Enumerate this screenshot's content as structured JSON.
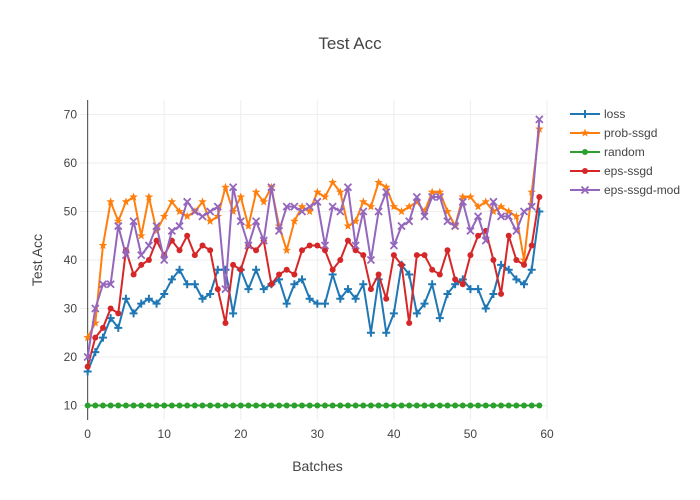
{
  "chart_data": {
    "type": "line",
    "title": "Test Acc",
    "xlabel": "Batches",
    "ylabel": "Test Acc",
    "xlim": [
      -1,
      60
    ],
    "ylim": [
      7,
      73
    ],
    "x_ticks": [
      0,
      10,
      20,
      30,
      40,
      50,
      60
    ],
    "y_ticks": [
      10,
      20,
      30,
      40,
      50,
      60,
      70
    ],
    "grid": true,
    "legend_position": "top-right",
    "series": [
      {
        "name": "loss",
        "color": "#1f77b4",
        "marker": "cross",
        "x": [
          0,
          1,
          2,
          3,
          4,
          5,
          6,
          7,
          8,
          9,
          10,
          11,
          12,
          13,
          14,
          15,
          16,
          17,
          18,
          19,
          20,
          21,
          22,
          23,
          24,
          25,
          26,
          27,
          28,
          29,
          30,
          31,
          32,
          33,
          34,
          35,
          36,
          37,
          38,
          39,
          40,
          41,
          42,
          43,
          44,
          45,
          46,
          47,
          48,
          49,
          50,
          51,
          52,
          53,
          54,
          55,
          56,
          57,
          58,
          59
        ],
        "values": [
          17,
          21,
          24,
          28,
          26,
          32,
          29,
          31,
          32,
          31,
          33,
          36,
          38,
          35,
          35,
          32,
          33,
          38,
          38,
          29,
          38,
          34,
          38,
          34,
          35,
          36,
          31,
          35,
          36,
          32,
          31,
          31,
          37,
          32,
          34,
          32,
          35,
          25,
          36,
          25,
          29,
          39,
          37,
          29,
          31,
          35,
          28,
          33,
          35,
          36,
          34,
          34,
          30,
          33,
          39,
          38,
          36,
          35,
          38,
          50
        ]
      },
      {
        "name": "prob-ssgd",
        "color": "#ff7f0e",
        "marker": "star",
        "x": [
          0,
          1,
          2,
          3,
          4,
          5,
          6,
          7,
          8,
          9,
          10,
          11,
          12,
          13,
          14,
          15,
          16,
          17,
          18,
          19,
          20,
          21,
          22,
          23,
          24,
          25,
          26,
          27,
          28,
          29,
          30,
          31,
          32,
          33,
          34,
          35,
          36,
          37,
          38,
          39,
          40,
          41,
          42,
          43,
          44,
          45,
          46,
          47,
          48,
          49,
          50,
          51,
          52,
          53,
          54,
          55,
          56,
          57,
          58,
          59
        ],
        "values": [
          24,
          27,
          43,
          52,
          48,
          52,
          53,
          45,
          53,
          46,
          49,
          52,
          50,
          49,
          50,
          52,
          48,
          49,
          55,
          50,
          53,
          47,
          54,
          52,
          55,
          47,
          42,
          48,
          51,
          50,
          54,
          53,
          56,
          54,
          47,
          48,
          52,
          51,
          56,
          55,
          51,
          50,
          51,
          52,
          50,
          54,
          54,
          50,
          47,
          53,
          53,
          51,
          52,
          50,
          51,
          50,
          49,
          40,
          54,
          67
        ]
      },
      {
        "name": "random",
        "color": "#2ca02c",
        "marker": "circle",
        "x": [
          0,
          1,
          2,
          3,
          4,
          5,
          6,
          7,
          8,
          9,
          10,
          11,
          12,
          13,
          14,
          15,
          16,
          17,
          18,
          19,
          20,
          21,
          22,
          23,
          24,
          25,
          26,
          27,
          28,
          29,
          30,
          31,
          32,
          33,
          34,
          35,
          36,
          37,
          38,
          39,
          40,
          41,
          42,
          43,
          44,
          45,
          46,
          47,
          48,
          49,
          50,
          51,
          52,
          53,
          54,
          55,
          56,
          57,
          58,
          59
        ],
        "values": [
          10,
          10,
          10,
          10,
          10,
          10,
          10,
          10,
          10,
          10,
          10,
          10,
          10,
          10,
          10,
          10,
          10,
          10,
          10,
          10,
          10,
          10,
          10,
          10,
          10,
          10,
          10,
          10,
          10,
          10,
          10,
          10,
          10,
          10,
          10,
          10,
          10,
          10,
          10,
          10,
          10,
          10,
          10,
          10,
          10,
          10,
          10,
          10,
          10,
          10,
          10,
          10,
          10,
          10,
          10,
          10,
          10,
          10,
          10,
          10
        ]
      },
      {
        "name": "eps-ssgd",
        "color": "#d62728",
        "marker": "circle",
        "x": [
          0,
          1,
          2,
          3,
          4,
          5,
          6,
          7,
          8,
          9,
          10,
          11,
          12,
          13,
          14,
          15,
          16,
          17,
          18,
          19,
          20,
          21,
          22,
          23,
          24,
          25,
          26,
          27,
          28,
          29,
          30,
          31,
          32,
          33,
          34,
          35,
          36,
          37,
          38,
          39,
          40,
          41,
          42,
          43,
          44,
          45,
          46,
          47,
          48,
          49,
          50,
          51,
          52,
          53,
          54,
          55,
          56,
          57,
          58,
          59
        ],
        "values": [
          18,
          24,
          26,
          30,
          29,
          42,
          37,
          39,
          40,
          44,
          41,
          44,
          42,
          45,
          41,
          43,
          42,
          34,
          27,
          39,
          38,
          43,
          42,
          44,
          35,
          37,
          38,
          37,
          42,
          43,
          43,
          42,
          38,
          40,
          44,
          42,
          41,
          34,
          37,
          32,
          41,
          39,
          27,
          41,
          41,
          38,
          37,
          42,
          36,
          35,
          41,
          45,
          46,
          40,
          33,
          45,
          40,
          39,
          43,
          53
        ]
      },
      {
        "name": "eps-ssgd-mod",
        "color": "#9467bd",
        "marker": "x",
        "x": [
          0,
          1,
          2,
          3,
          4,
          5,
          6,
          7,
          8,
          9,
          10,
          11,
          12,
          13,
          14,
          15,
          16,
          17,
          18,
          19,
          20,
          21,
          22,
          23,
          24,
          25,
          26,
          27,
          28,
          29,
          30,
          31,
          32,
          33,
          34,
          35,
          36,
          37,
          38,
          39,
          40,
          41,
          42,
          43,
          44,
          45,
          46,
          47,
          48,
          49,
          50,
          51,
          52,
          53,
          54,
          55,
          56,
          57,
          58,
          59
        ],
        "values": [
          20,
          30,
          35,
          35,
          47,
          41,
          48,
          41,
          43,
          47,
          40,
          46,
          47,
          52,
          50,
          49,
          50,
          51,
          34,
          55,
          48,
          43,
          48,
          44,
          55,
          46,
          51,
          51,
          50,
          51,
          52,
          43,
          51,
          50,
          55,
          43,
          50,
          40,
          50,
          54,
          43,
          47,
          48,
          53,
          49,
          53,
          53,
          48,
          47,
          52,
          46,
          49,
          44,
          52,
          49,
          49,
          46,
          50,
          51,
          69
        ]
      }
    ]
  }
}
